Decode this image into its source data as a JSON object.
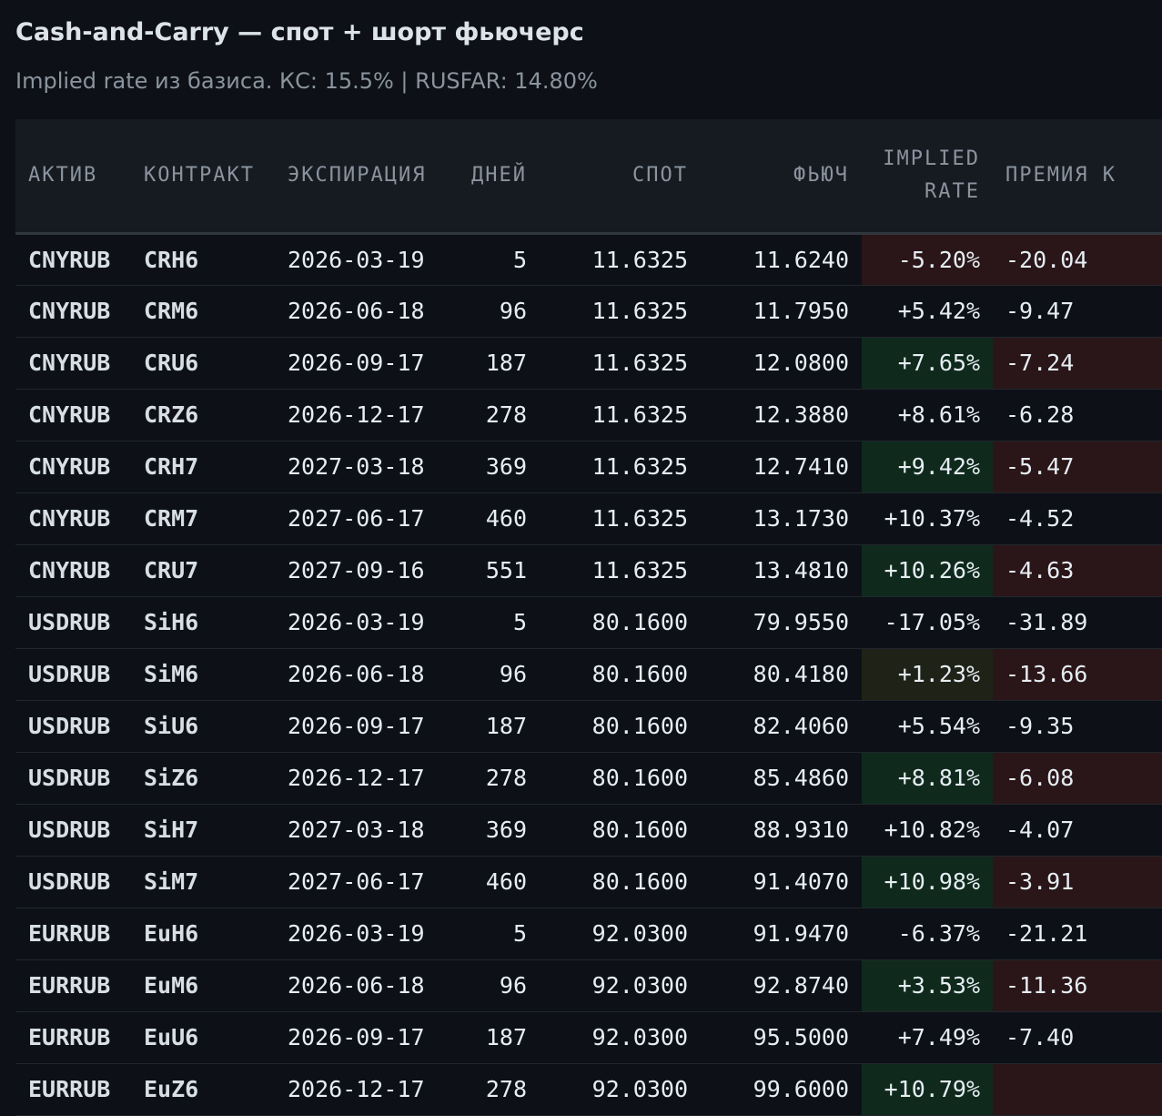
{
  "header": {
    "title": "Cash-and-Carry — спот + шорт фьючерс",
    "subtitle": "Implied rate из базиса. КС: 15.5% | RUSFAR: 14.80%"
  },
  "table": {
    "columns": [
      {
        "key": "asset",
        "label": "АКТИВ",
        "align": "left"
      },
      {
        "key": "contract",
        "label": "КОНТРАКТ",
        "align": "left"
      },
      {
        "key": "expiry",
        "label": "ЭКСПИРАЦИЯ",
        "align": "left"
      },
      {
        "key": "days",
        "label": "ДНЕЙ",
        "align": "right"
      },
      {
        "key": "spot",
        "label": "СПОТ",
        "align": "right"
      },
      {
        "key": "fut",
        "label": "ФЬЮЧ",
        "align": "right"
      },
      {
        "key": "implied",
        "label": "IMPLIED RATE",
        "align": "right"
      },
      {
        "key": "premium",
        "label": "ПРЕМИЯ К",
        "align": "right"
      }
    ],
    "rows": [
      {
        "asset": "CNYRUB",
        "contract": "CRH6",
        "expiry": "2026-03-19",
        "days": "5",
        "spot": "11.6325",
        "fut": "11.6240",
        "implied": "-5.20%",
        "implied_tone": "neg-strong",
        "premium": "-20.04",
        "premium_tone": "neg-premium"
      },
      {
        "asset": "CNYRUB",
        "contract": "CRM6",
        "expiry": "2026-06-18",
        "days": "96",
        "spot": "11.6325",
        "fut": "11.7950",
        "implied": "+5.42%",
        "implied_tone": "none",
        "premium": "-9.47",
        "premium_tone": "none"
      },
      {
        "asset": "CNYRUB",
        "contract": "CRU6",
        "expiry": "2026-09-17",
        "days": "187",
        "spot": "11.6325",
        "fut": "12.0800",
        "implied": "+7.65%",
        "implied_tone": "pos-strong",
        "premium": "-7.24",
        "premium_tone": "neg-premium"
      },
      {
        "asset": "CNYRUB",
        "contract": "CRZ6",
        "expiry": "2026-12-17",
        "days": "278",
        "spot": "11.6325",
        "fut": "12.3880",
        "implied": "+8.61%",
        "implied_tone": "none",
        "premium": "-6.28",
        "premium_tone": "none"
      },
      {
        "asset": "CNYRUB",
        "contract": "CRH7",
        "expiry": "2027-03-18",
        "days": "369",
        "spot": "11.6325",
        "fut": "12.7410",
        "implied": "+9.42%",
        "implied_tone": "pos-strong",
        "premium": "-5.47",
        "premium_tone": "neg-premium"
      },
      {
        "asset": "CNYRUB",
        "contract": "CRM7",
        "expiry": "2027-06-17",
        "days": "460",
        "spot": "11.6325",
        "fut": "13.1730",
        "implied": "+10.37%",
        "implied_tone": "none",
        "premium": "-4.52",
        "premium_tone": "none"
      },
      {
        "asset": "CNYRUB",
        "contract": "CRU7",
        "expiry": "2027-09-16",
        "days": "551",
        "spot": "11.6325",
        "fut": "13.4810",
        "implied": "+10.26%",
        "implied_tone": "pos-strong",
        "premium": "-4.63",
        "premium_tone": "neg-premium"
      },
      {
        "asset": "USDRUB",
        "contract": "SiH6",
        "expiry": "2026-03-19",
        "days": "5",
        "spot": "80.1600",
        "fut": "79.9550",
        "implied": "-17.05%",
        "implied_tone": "none",
        "premium": "-31.89",
        "premium_tone": "none"
      },
      {
        "asset": "USDRUB",
        "contract": "SiM6",
        "expiry": "2026-06-18",
        "days": "96",
        "spot": "80.1600",
        "fut": "80.4180",
        "implied": "+1.23%",
        "implied_tone": "pos-weak",
        "premium": "-13.66",
        "premium_tone": "neg-premium"
      },
      {
        "asset": "USDRUB",
        "contract": "SiU6",
        "expiry": "2026-09-17",
        "days": "187",
        "spot": "80.1600",
        "fut": "82.4060",
        "implied": "+5.54%",
        "implied_tone": "none",
        "premium": "-9.35",
        "premium_tone": "none"
      },
      {
        "asset": "USDRUB",
        "contract": "SiZ6",
        "expiry": "2026-12-17",
        "days": "278",
        "spot": "80.1600",
        "fut": "85.4860",
        "implied": "+8.81%",
        "implied_tone": "pos-strong",
        "premium": "-6.08",
        "premium_tone": "neg-premium"
      },
      {
        "asset": "USDRUB",
        "contract": "SiH7",
        "expiry": "2027-03-18",
        "days": "369",
        "spot": "80.1600",
        "fut": "88.9310",
        "implied": "+10.82%",
        "implied_tone": "none",
        "premium": "-4.07",
        "premium_tone": "none"
      },
      {
        "asset": "USDRUB",
        "contract": "SiM7",
        "expiry": "2027-06-17",
        "days": "460",
        "spot": "80.1600",
        "fut": "91.4070",
        "implied": "+10.98%",
        "implied_tone": "pos-strong",
        "premium": "-3.91",
        "premium_tone": "neg-premium"
      },
      {
        "asset": "EURRUB",
        "contract": "EuH6",
        "expiry": "2026-03-19",
        "days": "5",
        "spot": "92.0300",
        "fut": "91.9470",
        "implied": "-6.37%",
        "implied_tone": "none",
        "premium": "-21.21",
        "premium_tone": "none"
      },
      {
        "asset": "EURRUB",
        "contract": "EuM6",
        "expiry": "2026-06-18",
        "days": "96",
        "spot": "92.0300",
        "fut": "92.8740",
        "implied": "+3.53%",
        "implied_tone": "pos-strong",
        "premium": "-11.36",
        "premium_tone": "neg-premium"
      },
      {
        "asset": "EURRUB",
        "contract": "EuU6",
        "expiry": "2026-09-17",
        "days": "187",
        "spot": "92.0300",
        "fut": "95.5000",
        "implied": "+7.49%",
        "implied_tone": "none",
        "premium": "-7.40",
        "premium_tone": "none"
      },
      {
        "asset": "EURRUB",
        "contract": "EuZ6",
        "expiry": "2026-12-17",
        "days": "278",
        "spot": "92.0300",
        "fut": "99.6000",
        "implied": "+10.79%",
        "implied_tone": "pos-strong",
        "premium": "",
        "premium_tone": "neg-premium"
      }
    ]
  },
  "colors": {
    "background": "#0d1117",
    "header_bg": "#161b22",
    "positive_cell": "#0f2a1c",
    "negative_cell": "#2a1618",
    "weak_cell": "#1f2216"
  }
}
